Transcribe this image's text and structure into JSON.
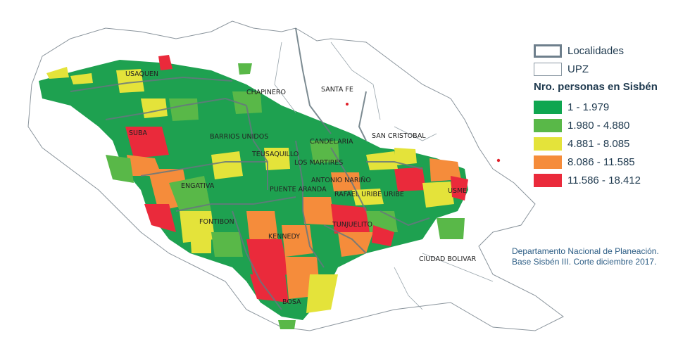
{
  "legend": {
    "localidades": "Localidades",
    "upz": "UPZ",
    "title": "Nro. personas en Sisbén",
    "classes": [
      {
        "label": "1 - 1.979",
        "color": "#0fa650"
      },
      {
        "label": "1.980 - 4.880",
        "color": "#59b848"
      },
      {
        "label": "4.881 - 8.085",
        "color": "#e4e33a"
      },
      {
        "label": "8.086 - 11.585",
        "color": "#f58c3b"
      },
      {
        "label": "11.586 - 18.412",
        "color": "#ea2a3b"
      }
    ]
  },
  "source_note": "Departamento Nacional de Planeación. Base Sisbén III. Corte diciembre 2017.",
  "localities": [
    "USAQUEN",
    "CHAPINERO",
    "SANTA FE",
    "SUBA",
    "BARRIOS UNIDOS",
    "SAN CRISTOBAL",
    "CANDELARIA",
    "TEUSAQUILLO",
    "LOS MARTIRES",
    "ANTONIO NARIÑO",
    "ENGATIVA",
    "PUENTE ARANDA",
    "RAFAEL URIBE URIBE",
    "USME",
    "FONTIBON",
    "TUNJUELITO",
    "KENNEDY",
    "CIUDAD BOLIVAR",
    "BOSA"
  ]
}
